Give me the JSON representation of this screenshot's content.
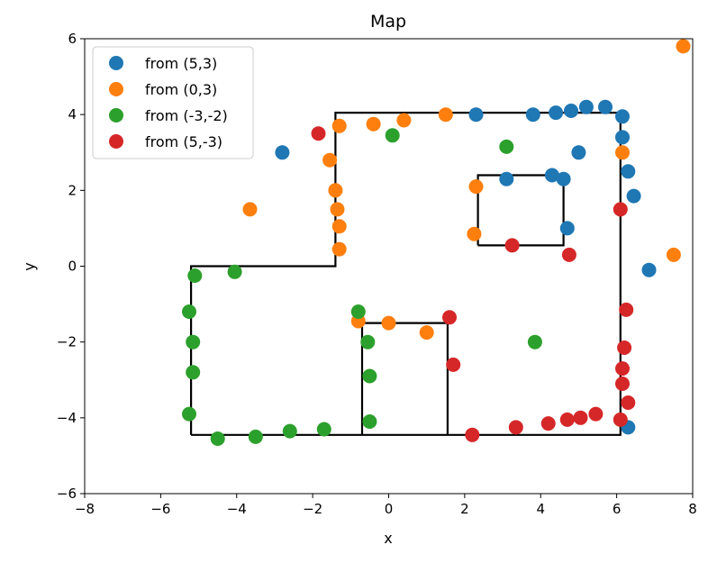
{
  "chart_data": {
    "type": "scatter",
    "title": "Map",
    "xlabel": "x",
    "ylabel": "y",
    "xlim": [
      -8,
      8
    ],
    "ylim": [
      -6,
      6
    ],
    "xticks": [
      -8,
      -6,
      -4,
      -2,
      0,
      2,
      4,
      6,
      8
    ],
    "yticks": [
      -6,
      -4,
      -2,
      0,
      2,
      4,
      6
    ],
    "xtick_labels": [
      "−8",
      "−6",
      "−4",
      "−2",
      "0",
      "2",
      "4",
      "6",
      "8"
    ],
    "ytick_labels": [
      "−6",
      "−4",
      "−2",
      "0",
      "2",
      "4",
      "6"
    ],
    "grid": false,
    "legend_position": "top-left",
    "series": [
      {
        "name": "from (5,3)",
        "color": "#1f77b4",
        "points": [
          [
            -2.8,
            3.0
          ],
          [
            2.3,
            4.0
          ],
          [
            3.8,
            4.0
          ],
          [
            4.4,
            4.05
          ],
          [
            4.8,
            4.1
          ],
          [
            5.2,
            4.2
          ],
          [
            5.7,
            4.2
          ],
          [
            6.15,
            3.95
          ],
          [
            6.15,
            3.4
          ],
          [
            6.3,
            2.5
          ],
          [
            6.45,
            1.85
          ],
          [
            6.85,
            -0.1
          ],
          [
            6.3,
            -4.25
          ],
          [
            5.0,
            3.0
          ],
          [
            3.1,
            2.3
          ],
          [
            4.3,
            2.4
          ],
          [
            4.6,
            2.3
          ],
          [
            4.7,
            1.0
          ]
        ]
      },
      {
        "name": "from (0,3)",
        "color": "#ff7f0e",
        "points": [
          [
            7.75,
            5.8
          ],
          [
            1.5,
            4.0
          ],
          [
            0.4,
            3.85
          ],
          [
            -0.4,
            3.75
          ],
          [
            -1.3,
            3.7
          ],
          [
            -1.55,
            2.8
          ],
          [
            -1.4,
            2.0
          ],
          [
            -1.35,
            1.5
          ],
          [
            -1.3,
            1.05
          ],
          [
            -1.3,
            0.45
          ],
          [
            -3.65,
            1.5
          ],
          [
            2.3,
            2.1
          ],
          [
            2.25,
            0.85
          ],
          [
            6.15,
            3.0
          ],
          [
            7.5,
            0.3
          ],
          [
            -0.8,
            -1.45
          ],
          [
            0.0,
            -1.5
          ],
          [
            1.0,
            -1.75
          ]
        ]
      },
      {
        "name": "from (-3,-2)",
        "color": "#2ca02c",
        "points": [
          [
            0.1,
            3.45
          ],
          [
            3.1,
            3.15
          ],
          [
            -4.05,
            -0.15
          ],
          [
            -5.1,
            -0.25
          ],
          [
            -5.25,
            -1.2
          ],
          [
            -5.15,
            -2.0
          ],
          [
            -5.15,
            -2.8
          ],
          [
            -5.25,
            -3.9
          ],
          [
            -4.5,
            -4.55
          ],
          [
            -3.5,
            -4.5
          ],
          [
            -2.6,
            -4.35
          ],
          [
            -1.7,
            -4.3
          ],
          [
            -0.5,
            -4.1
          ],
          [
            -0.5,
            -2.9
          ],
          [
            -0.55,
            -2.0
          ],
          [
            -0.8,
            -1.2
          ],
          [
            3.85,
            -2.0
          ]
        ]
      },
      {
        "name": "from (5,-3)",
        "color": "#d62728",
        "points": [
          [
            -1.85,
            3.5
          ],
          [
            6.1,
            1.5
          ],
          [
            3.25,
            0.55
          ],
          [
            4.75,
            0.3
          ],
          [
            6.25,
            -1.15
          ],
          [
            6.2,
            -2.15
          ],
          [
            6.15,
            -2.7
          ],
          [
            6.15,
            -3.1
          ],
          [
            6.3,
            -3.6
          ],
          [
            6.1,
            -4.05
          ],
          [
            5.45,
            -3.9
          ],
          [
            5.05,
            -4.0
          ],
          [
            4.7,
            -4.05
          ],
          [
            4.2,
            -4.15
          ],
          [
            3.35,
            -4.25
          ],
          [
            2.2,
            -4.45
          ],
          [
            1.7,
            -2.6
          ],
          [
            1.6,
            -1.35
          ]
        ]
      }
    ],
    "walls": [
      [
        [
          -5.2,
          -4.45
        ],
        [
          -5.2,
          0.0
        ],
        [
          -1.4,
          0.0
        ],
        [
          -1.4,
          4.05
        ],
        [
          6.1,
          4.05
        ],
        [
          6.1,
          -4.45
        ],
        [
          -5.2,
          -4.45
        ]
      ],
      [
        [
          -0.7,
          -4.45
        ],
        [
          -0.7,
          -1.5
        ],
        [
          1.55,
          -1.5
        ],
        [
          1.55,
          -4.45
        ]
      ],
      [
        [
          2.35,
          0.55
        ],
        [
          2.35,
          2.4
        ],
        [
          4.6,
          2.4
        ],
        [
          4.6,
          0.55
        ],
        [
          2.35,
          0.55
        ]
      ]
    ]
  }
}
